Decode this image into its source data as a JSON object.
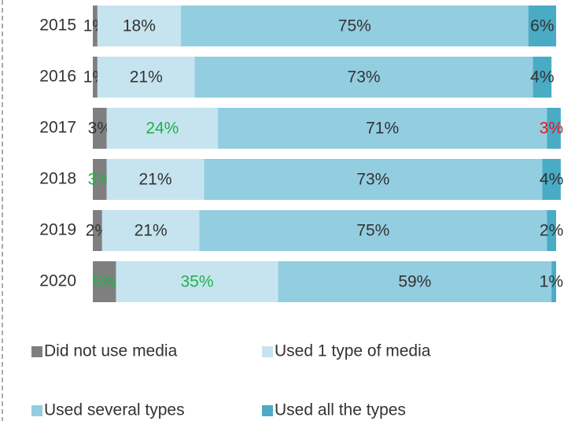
{
  "chart_data": {
    "type": "stacked_barh",
    "categories": [
      "2015",
      "2016",
      "2017",
      "2018",
      "2019",
      "2020"
    ],
    "xlim": [
      0,
      100
    ],
    "legend": "bottom",
    "series": [
      {
        "name": "Did not use media",
        "color": "#7f7f7f",
        "values": [
          1,
          1,
          3,
          3,
          2,
          5
        ],
        "value_labels": [
          "1%",
          "1%",
          "3%",
          "3%",
          "2%",
          "5%"
        ],
        "label_colors": [
          "#333333",
          "#333333",
          "#333333",
          "#22b14c",
          "#333333",
          "#22b14c"
        ]
      },
      {
        "name": "Used 1 type of media",
        "color": "#c6e4ef",
        "values": [
          18,
          21,
          24,
          21,
          21,
          35
        ],
        "value_labels": [
          "18%",
          "21%",
          "24%",
          "21%",
          "21%",
          "35%"
        ],
        "label_colors": [
          "#333333",
          "#333333",
          "#22b14c",
          "#333333",
          "#333333",
          "#22b14c"
        ]
      },
      {
        "name": "Used several types",
        "color": "#93cde0",
        "values": [
          75,
          73,
          71,
          73,
          75,
          59
        ],
        "value_labels": [
          "75%",
          "73%",
          "71%",
          "73%",
          "75%",
          "59%"
        ],
        "label_colors": [
          "#333333",
          "#333333",
          "#333333",
          "#333333",
          "#333333",
          "#333333"
        ]
      },
      {
        "name": "Used all the types",
        "color": "#4aabc5",
        "values": [
          6,
          4,
          3,
          4,
          2,
          1
        ],
        "value_labels": [
          "6%",
          "4%",
          "3%",
          "4%",
          "2%",
          "1%"
        ],
        "label_colors": [
          "#333333",
          "#333333",
          "#e8141c",
          "#333333",
          "#333333",
          "#333333"
        ]
      }
    ]
  }
}
